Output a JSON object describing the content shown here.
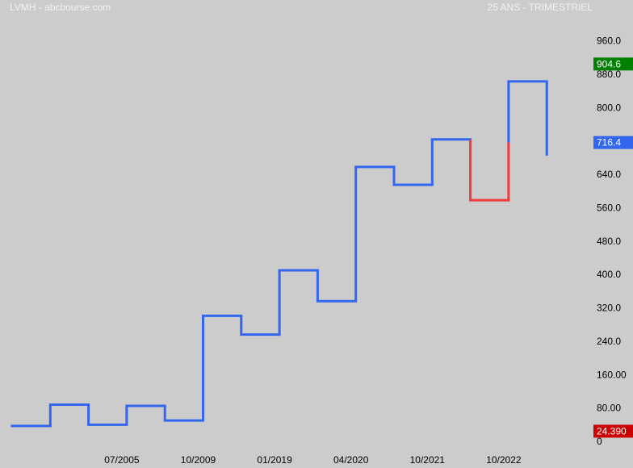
{
  "header": {
    "left": "LVMH - abcbourse.com",
    "right": "25 ANS - TRIMESTRIEL"
  },
  "chart_data": {
    "type": "line",
    "step": true,
    "title": "",
    "xlabel": "",
    "ylabel": "",
    "ylim": [
      0,
      1000
    ],
    "y_ticks": [
      {
        "value": 960,
        "label": "960.0"
      },
      {
        "value": 880,
        "label": "880.0"
      },
      {
        "value": 800,
        "label": "800.0"
      },
      {
        "value": 720,
        "label": "720.0"
      },
      {
        "value": 640,
        "label": "640.0"
      },
      {
        "value": 560,
        "label": "560.0"
      },
      {
        "value": 480,
        "label": "480.0"
      },
      {
        "value": 400,
        "label": "400.0"
      },
      {
        "value": 320,
        "label": "320.0"
      },
      {
        "value": 240,
        "label": "240.0"
      },
      {
        "value": 160,
        "label": "160.00"
      },
      {
        "value": 80,
        "label": "80.00"
      },
      {
        "value": 0,
        "label": "0"
      }
    ],
    "x_ticks": [
      "07/2005",
      "10/2009",
      "01/2019",
      "04/2020",
      "10/2021",
      "10/2022"
    ],
    "x_tick_index": [
      3,
      5,
      7,
      9,
      11,
      13
    ],
    "periods": 14.5,
    "steps": [
      {
        "value": 37,
        "color": "blue"
      },
      {
        "value": 88,
        "color": "blue"
      },
      {
        "value": 40,
        "color": "blue"
      },
      {
        "value": 85,
        "color": "blue"
      },
      {
        "value": 50,
        "color": "blue"
      },
      {
        "value": 301,
        "color": "blue"
      },
      {
        "value": 256,
        "color": "blue"
      },
      {
        "value": 410,
        "color": "blue"
      },
      {
        "value": 336,
        "color": "blue"
      },
      {
        "value": 658,
        "color": "blue"
      },
      {
        "value": 615,
        "color": "blue"
      },
      {
        "value": 724,
        "color": "blue"
      },
      {
        "value": 578,
        "color": "red"
      },
      {
        "value": 863,
        "color": "blue"
      }
    ],
    "last_value": 685,
    "series_colors": {
      "blue": "#3366ee",
      "red": "#ee3b3b"
    },
    "badges": [
      {
        "value": 904.6,
        "label": "904.6",
        "color": "#008000"
      },
      {
        "value": 716.4,
        "label": "716.4",
        "color": "#3366ee"
      },
      {
        "value": 24.39,
        "label": "24.390",
        "color": "#cc0000"
      }
    ],
    "grid": false
  }
}
